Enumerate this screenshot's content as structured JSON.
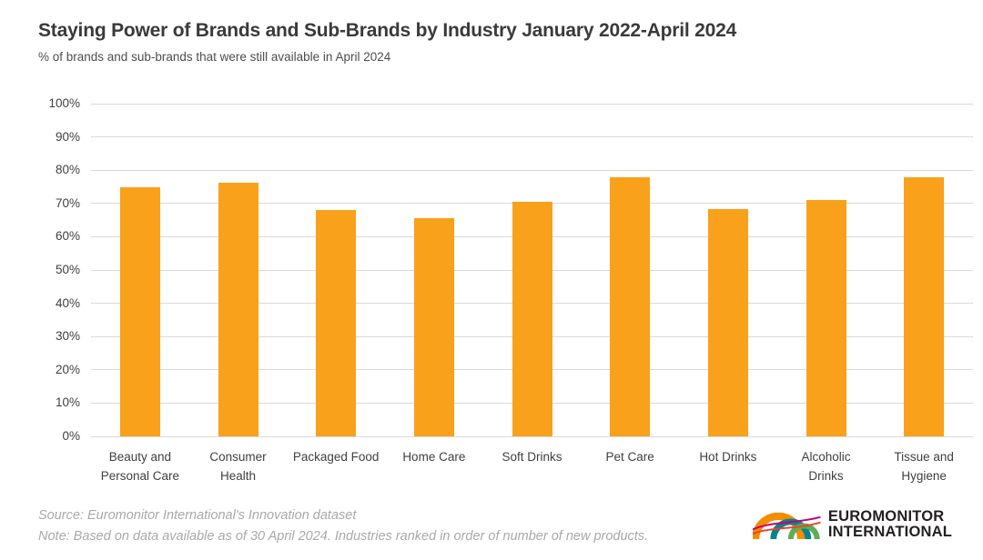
{
  "chart": {
    "title": "Staying Power of Brands and Sub-Brands by Industry January 2022-April 2024",
    "subtitle": "% of brands and sub-brands that were still available in April 2024"
  },
  "chart_data": {
    "type": "bar",
    "title": "Staying Power of Brands and Sub-Brands by Industry January 2022-April 2024",
    "subtitle": "% of brands and sub-brands that were still available in April 2024",
    "categories": [
      "Beauty and Personal Care",
      "Consumer Health",
      "Packaged Food",
      "Home Care",
      "Soft Drinks",
      "Pet Care",
      "Hot Drinks",
      "Alcoholic Drinks",
      "Tissue and Hygiene"
    ],
    "category_label_lines": [
      [
        "Beauty and",
        "Personal Care"
      ],
      [
        "Consumer",
        "Health"
      ],
      [
        "Packaged Food"
      ],
      [
        "Home Care"
      ],
      [
        "Soft Drinks"
      ],
      [
        "Pet Care"
      ],
      [
        "Hot Drinks"
      ],
      [
        "Alcoholic",
        "Drinks"
      ],
      [
        "Tissue and",
        "Hygiene"
      ]
    ],
    "values": [
      74.8,
      76.2,
      68.0,
      65.6,
      70.6,
      77.9,
      68.2,
      71.1,
      78.0
    ],
    "xlabel": "",
    "ylabel": "",
    "ylim": [
      0,
      100
    ],
    "ytick_step": 10,
    "ytick_labels": [
      "0%",
      "10%",
      "20%",
      "30%",
      "40%",
      "50%",
      "60%",
      "70%",
      "80%",
      "90%",
      "100%"
    ],
    "grid": true,
    "legend": "none",
    "bar_color": "#F9A11B",
    "gridline_color": "#D9D9D9"
  },
  "footer": {
    "source": "Source: Euromonitor International's Innovation dataset",
    "note": "Note: Based on data available as of 30 April 2024. Industries ranked in order of number of new products."
  },
  "logo": {
    "line1": "EUROMONITOR",
    "line2": "INTERNATIONAL",
    "arc_colors": {
      "orange": "#F28D00",
      "teal": "#00858F",
      "green": "#5FAD56",
      "magenta": "#C8006E",
      "red": "#E8442C"
    }
  }
}
